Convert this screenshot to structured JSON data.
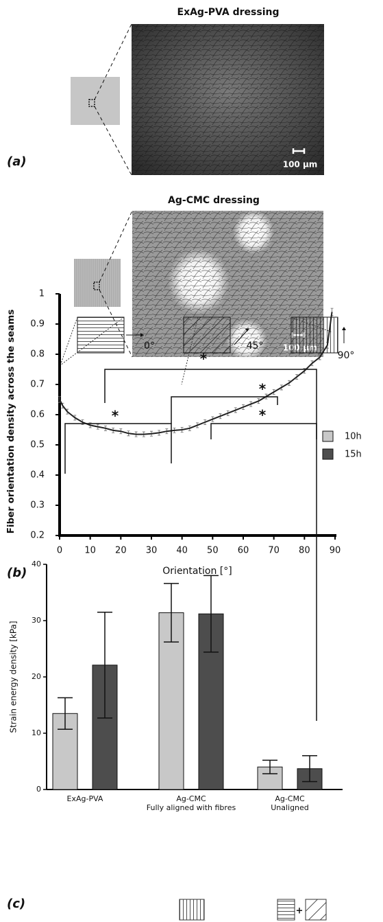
{
  "figure": {
    "panel_a": {
      "label": "(a)",
      "title": "ExAg-PVA dressing",
      "scale_bar": "100 µm"
    },
    "panel_b": {
      "label": "(b)",
      "title": "Ag-CMC dressing",
      "scale_bar": "100 µm"
    },
    "panel_c": {
      "label": "(c)"
    }
  },
  "chart_data": [
    {
      "type": "line",
      "xlabel": "Orientation [°]",
      "ylabel": "Fiber orientation density across the seams",
      "xlim": [
        0,
        90
      ],
      "ylim": [
        0.2,
        1
      ],
      "xticks": [
        0,
        10,
        20,
        30,
        40,
        50,
        60,
        70,
        80,
        90
      ],
      "yticks": [
        0.2,
        0.3,
        0.4,
        0.5,
        0.6,
        0.7,
        0.8,
        0.9,
        1
      ],
      "x": [
        0,
        1,
        2.5,
        5,
        7.5,
        10,
        12.5,
        15,
        17.5,
        20,
        22.5,
        25,
        27.5,
        30,
        32.5,
        35,
        37.5,
        40,
        42.5,
        45,
        47.5,
        50,
        52.5,
        55,
        57.5,
        60,
        62.5,
        65,
        67.5,
        70,
        72.5,
        75,
        77.5,
        80,
        82.5,
        85,
        87.5,
        89
      ],
      "series": [
        {
          "color": "#222222",
          "values": [
            0.65,
            0.63,
            0.61,
            0.59,
            0.575,
            0.565,
            0.56,
            0.555,
            0.548,
            0.545,
            0.538,
            0.535,
            0.535,
            0.537,
            0.54,
            0.545,
            0.548,
            0.55,
            0.555,
            0.565,
            0.575,
            0.585,
            0.595,
            0.605,
            0.615,
            0.625,
            0.635,
            0.645,
            0.66,
            0.675,
            0.69,
            0.705,
            0.725,
            0.745,
            0.77,
            0.79,
            0.83,
            0.94
          ],
          "errors": [
            0.01,
            0.008,
            0.008,
            0.008,
            0.008,
            0.008,
            0.008,
            0.008,
            0.008,
            0.008,
            0.008,
            0.008,
            0.008,
            0.008,
            0.008,
            0.008,
            0.008,
            0.008,
            0.008,
            0.008,
            0.008,
            0.008,
            0.008,
            0.008,
            0.008,
            0.008,
            0.008,
            0.008,
            0.008,
            0.008,
            0.008,
            0.008,
            0.008,
            0.008,
            0.008,
            0.008,
            0.01,
            0.012
          ]
        }
      ],
      "annotations": [
        "0°",
        "45°",
        "90°"
      ]
    },
    {
      "type": "bar",
      "ylabel": "Strain energy density [kPa]",
      "ylim": [
        0,
        40
      ],
      "yticks": [
        0,
        10,
        20,
        30,
        40
      ],
      "categories": [
        [
          "ExAg-PVA"
        ],
        [
          "Ag-CMC",
          "Fully aligned with fibres"
        ],
        [
          "Ag-CMC",
          "Unaligned"
        ]
      ],
      "series": [
        {
          "name": "10h",
          "color": "#c8c8c8",
          "values": [
            13.5,
            31.4,
            4.0
          ],
          "errors": [
            2.8,
            5.2,
            1.2
          ]
        },
        {
          "name": "15h",
          "color": "#4d4d4d",
          "values": [
            22.1,
            31.2,
            3.7
          ],
          "errors": [
            9.4,
            6.8,
            2.3
          ]
        }
      ],
      "legend": "upper right",
      "annotations": [
        "*",
        "*",
        "*",
        "*",
        "+"
      ]
    }
  ]
}
